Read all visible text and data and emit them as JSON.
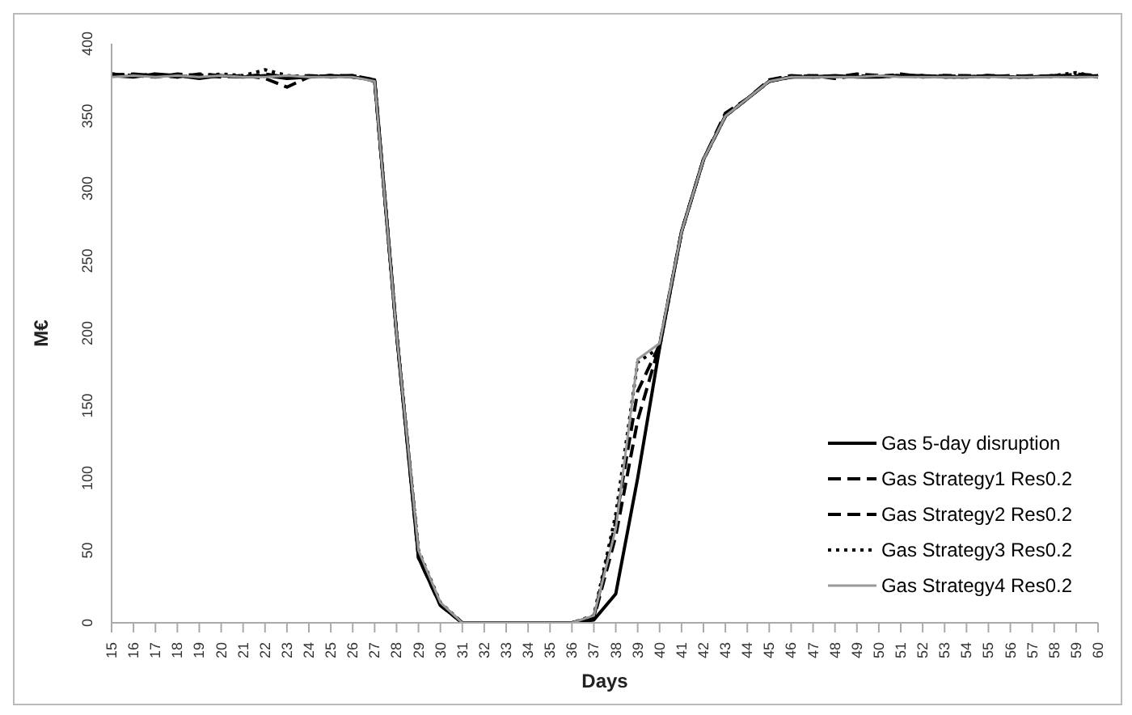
{
  "chart_data": {
    "type": "line",
    "xlabel": "Days",
    "ylabel": "M€",
    "categories": [
      "15",
      "16",
      "17",
      "18",
      "19",
      "20",
      "21",
      "22",
      "23",
      "24",
      "25",
      "26",
      "27",
      "28",
      "29",
      "30",
      "31",
      "32",
      "33",
      "34",
      "35",
      "36",
      "37",
      "38",
      "39",
      "40",
      "41",
      "42",
      "43",
      "44",
      "45",
      "46",
      "47",
      "48",
      "49",
      "50",
      "51",
      "52",
      "53",
      "54",
      "55",
      "56",
      "57",
      "58",
      "59",
      "60"
    ],
    "ylim": [
      0,
      400
    ],
    "yticks": [
      0,
      50,
      100,
      150,
      200,
      250,
      300,
      350,
      400
    ],
    "legend": "bottom right",
    "marker": "none",
    "series": [
      {
        "name": "Gas 5-day disruption",
        "color": "#000000",
        "line_style": "solid",
        "values": [
          378,
          377,
          379,
          378,
          376,
          378,
          377,
          378,
          376,
          377,
          378,
          377,
          375,
          200,
          45,
          12,
          0,
          0,
          0,
          0,
          0,
          0,
          2,
          20,
          100,
          190,
          270,
          320,
          350,
          362,
          374,
          377,
          377,
          378,
          377,
          377,
          378,
          378,
          377,
          377,
          378,
          377,
          377,
          378,
          377,
          378
        ]
      },
      {
        "name": "Gas Strategy1 Res0.2",
        "color": "#000000",
        "line_style": "dashed",
        "values": [
          379,
          378,
          377,
          379,
          378,
          377,
          378,
          376,
          370,
          377,
          378,
          378,
          375,
          200,
          45,
          12,
          0,
          0,
          0,
          0,
          0,
          0,
          3,
          60,
          140,
          192,
          270,
          320,
          350,
          362,
          374,
          377,
          378,
          376,
          378,
          377,
          379,
          377,
          378,
          378,
          377,
          378,
          377,
          378,
          378,
          377
        ]
      },
      {
        "name": "Gas Strategy2 Res0.2",
        "color": "#000000",
        "line_style": "dashed",
        "values": [
          378,
          379,
          378,
          377,
          379,
          378,
          377,
          379,
          377,
          378,
          377,
          378,
          374,
          200,
          48,
          13,
          0,
          0,
          0,
          0,
          0,
          0,
          4,
          70,
          160,
          192,
          270,
          320,
          352,
          362,
          375,
          378,
          377,
          377,
          379,
          378,
          378,
          377,
          378,
          377,
          378,
          377,
          378,
          377,
          379,
          378
        ]
      },
      {
        "name": "Gas Strategy3 Res0.2",
        "color": "#000000",
        "line_style": "dotted",
        "values": [
          379,
          378,
          379,
          377,
          378,
          379,
          378,
          382,
          378,
          377,
          378,
          377,
          375,
          200,
          50,
          14,
          0,
          0,
          0,
          0,
          0,
          0,
          5,
          75,
          180,
          190,
          270,
          320,
          350,
          362,
          374,
          377,
          378,
          377,
          378,
          377,
          378,
          378,
          377,
          377,
          378,
          377,
          377,
          378,
          380,
          377
        ]
      },
      {
        "name": "Gas Strategy4 Res0.2",
        "color": "#999999",
        "line_style": "solid",
        "values": [
          377,
          378,
          377,
          378,
          377,
          378,
          377,
          377,
          378,
          377,
          377,
          377,
          374,
          200,
          50,
          14,
          0,
          0,
          0,
          0,
          0,
          0,
          5,
          65,
          182,
          193,
          270,
          320,
          350,
          362,
          374,
          377,
          377,
          377,
          377,
          378,
          377,
          377,
          377,
          377,
          377,
          377,
          377,
          377,
          377,
          377
        ]
      }
    ]
  }
}
